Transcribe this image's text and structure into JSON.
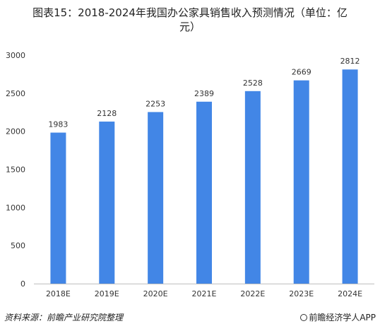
{
  "chart_data": {
    "type": "bar",
    "title_line1": "图表15：2018-2024年我国办公家具销售收入预测情况（单位：亿",
    "title_line2": "元）",
    "categories": [
      "2018E",
      "2019E",
      "2020E",
      "2021E",
      "2022E",
      "2023E",
      "2024E"
    ],
    "values": [
      1983,
      2128,
      2253,
      2389,
      2528,
      2669,
      2812
    ],
    "ylim": [
      0,
      3000
    ],
    "yticks": [
      0,
      500,
      1000,
      1500,
      2000,
      2500,
      3000
    ],
    "grid": false,
    "bar_color": "#4286e6"
  },
  "footer": {
    "source": "资料来源：前瞻产业研究院整理",
    "brand": "前瞻经济学人APP"
  }
}
